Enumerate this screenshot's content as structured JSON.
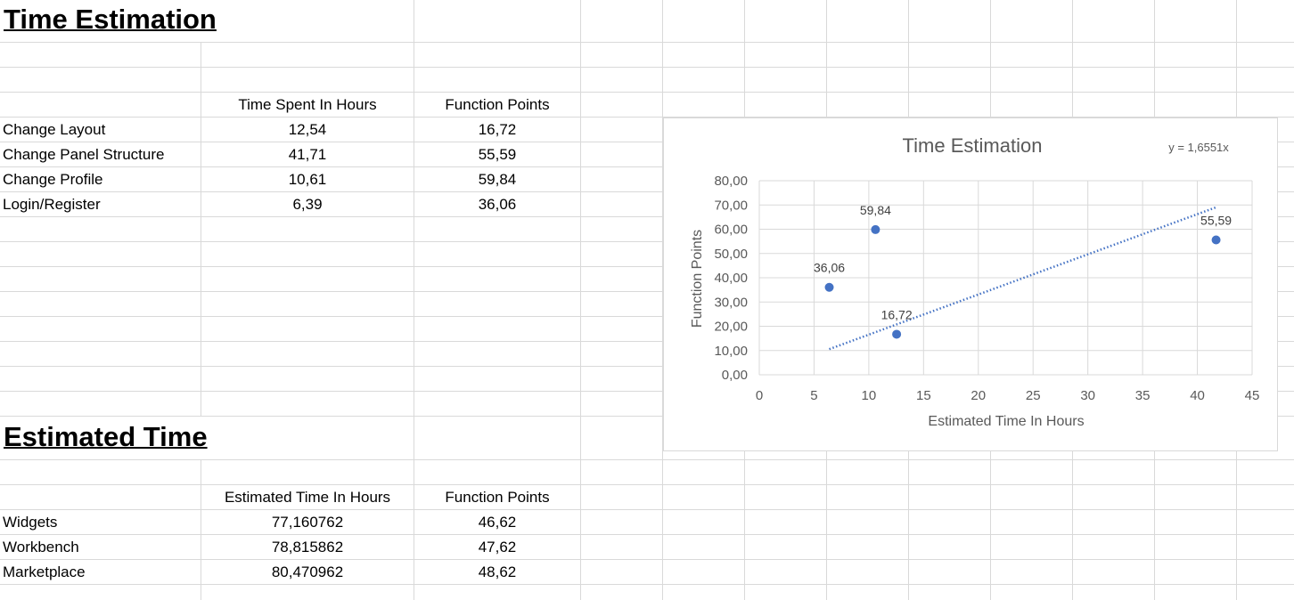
{
  "time_estimation": {
    "title": "Time Estimation",
    "headers": [
      "Time Spent In Hours",
      "Function Points"
    ],
    "rows": [
      {
        "name": "Change Layout",
        "time": "12,54",
        "fp": "16,72"
      },
      {
        "name": "Change Panel Structure",
        "time": "41,71",
        "fp": "55,59"
      },
      {
        "name": "Change Profile",
        "time": "10,61",
        "fp": "59,84"
      },
      {
        "name": "Login/Register",
        "time": "6,39",
        "fp": "36,06"
      }
    ]
  },
  "estimated_time": {
    "title": "Estimated Time",
    "headers": [
      "Estimated Time In Hours",
      "Function Points"
    ],
    "rows": [
      {
        "name": "Widgets",
        "time": "77,160762",
        "fp": "46,62"
      },
      {
        "name": "Workbench",
        "time": "78,815862",
        "fp": "47,62"
      },
      {
        "name": "Marketplace",
        "time": "80,470962",
        "fp": "48,62"
      }
    ]
  },
  "colors": {
    "gridline": "#d9d9d9",
    "marker": "#4472c4",
    "axis_text": "#595959"
  },
  "chart_data": {
    "type": "scatter",
    "title": "Time Estimation",
    "xlabel": "Estimated Time In Hours",
    "ylabel": "Function Points",
    "xlim": [
      0,
      45
    ],
    "ylim": [
      0,
      80
    ],
    "x_ticks": [
      "0",
      "5",
      "10",
      "15",
      "20",
      "25",
      "30",
      "35",
      "40",
      "45"
    ],
    "y_ticks": [
      "0,00",
      "10,00",
      "20,00",
      "30,00",
      "40,00",
      "50,00",
      "60,00",
      "70,00",
      "80,00"
    ],
    "grid": true,
    "points": [
      {
        "x": 12.54,
        "y": 16.72,
        "label": "16,72"
      },
      {
        "x": 41.71,
        "y": 55.59,
        "label": "55,59"
      },
      {
        "x": 10.61,
        "y": 59.84,
        "label": "59,84"
      },
      {
        "x": 6.39,
        "y": 36.06,
        "label": "36,06"
      }
    ],
    "trendline": {
      "slope": 1.6551,
      "intercept": 0,
      "x_range": [
        6.39,
        41.71
      ],
      "equation": "y = 1,6551x"
    }
  }
}
